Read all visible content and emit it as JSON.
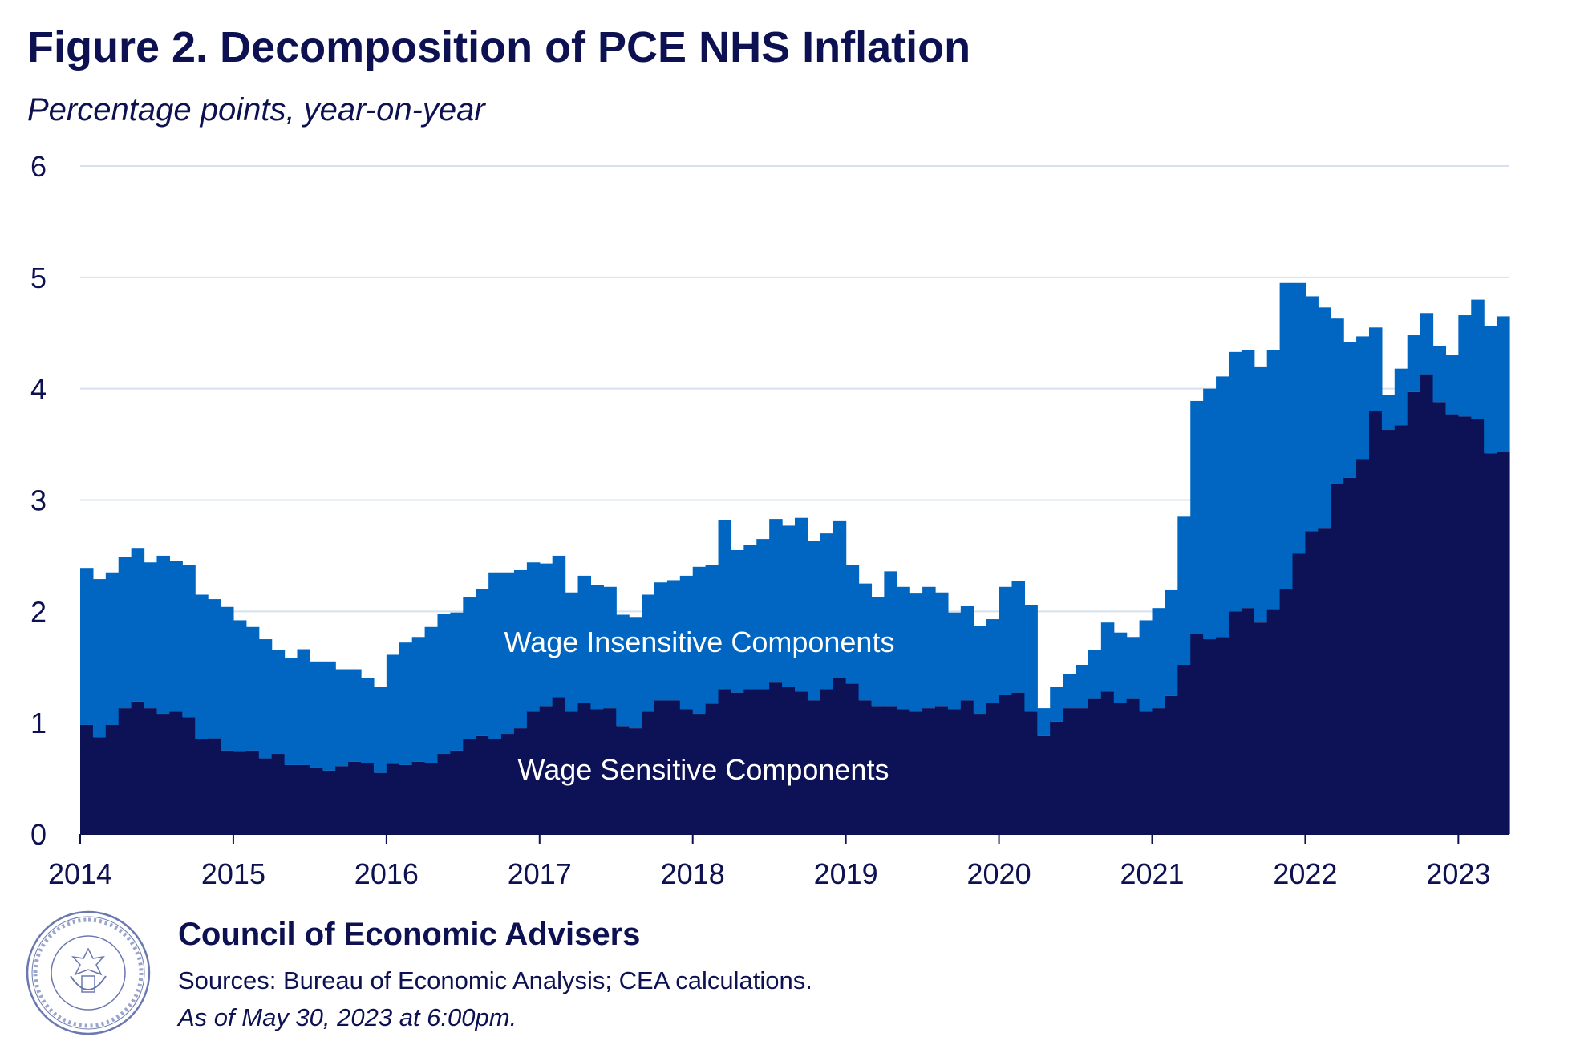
{
  "title": "Figure 2. Decomposition of PCE NHS Inflation",
  "subtitle": "Percentage points, year-on-year",
  "footer": {
    "organization": "Council of Economic Advisers",
    "sources": "Sources: Bureau of Economic Analysis; CEA calculations.",
    "as_of": "As of May 30, 2023 at 6:00pm.",
    "seal_text": "EXECUTIVE OFFICE OF THE PRESIDENT OF THE UNITED STATES · COUNCIL OF ECONOMIC ADVISERS"
  },
  "colors": {
    "wage_sensitive": "#0d1155",
    "wage_insensitive": "#0066c2",
    "grid": "#d6e0ee",
    "text": "#0d1152"
  },
  "chart_data": {
    "type": "area",
    "stacked": true,
    "step": true,
    "title": "Figure 2. Decomposition of PCE NHS Inflation",
    "ylabel": "Percentage points, year-on-year",
    "ylim": [
      0,
      6
    ],
    "yticks": [
      0,
      1,
      2,
      3,
      4,
      5,
      6
    ],
    "xticks": [
      "2014",
      "2015",
      "2016",
      "2017",
      "2018",
      "2019",
      "2020",
      "2021",
      "2022",
      "2023"
    ],
    "x_start": "2014-01",
    "x_end": "2023-04",
    "grid": true,
    "labels": {
      "wage_insensitive": "Wage Insensitive Components",
      "wage_sensitive": "Wage Sensitive Components"
    },
    "series": [
      {
        "name": "Wage Sensitive Components",
        "values": [
          0.98,
          0.87,
          0.98,
          1.13,
          1.19,
          1.13,
          1.08,
          1.1,
          1.05,
          0.85,
          0.86,
          0.75,
          0.74,
          0.75,
          0.68,
          0.72,
          0.62,
          0.62,
          0.6,
          0.57,
          0.61,
          0.65,
          0.64,
          0.55,
          0.63,
          0.62,
          0.65,
          0.64,
          0.72,
          0.75,
          0.85,
          0.88,
          0.85,
          0.9,
          0.95,
          1.1,
          1.15,
          1.23,
          1.1,
          1.18,
          1.12,
          1.13,
          0.97,
          0.95,
          1.1,
          1.2,
          1.2,
          1.12,
          1.08,
          1.17,
          1.3,
          1.27,
          1.3,
          1.3,
          1.36,
          1.32,
          1.28,
          1.2,
          1.3,
          1.4,
          1.35,
          1.2,
          1.15,
          1.15,
          1.12,
          1.1,
          1.13,
          1.15,
          1.12,
          1.2,
          1.08,
          1.18,
          1.25,
          1.27,
          1.1,
          0.88,
          1.01,
          1.13,
          1.13,
          1.22,
          1.28,
          1.18,
          1.22,
          1.1,
          1.13,
          1.24,
          1.52,
          1.8,
          1.75,
          1.77,
          2.0,
          2.03,
          1.9,
          2.02,
          2.2,
          2.52,
          2.72,
          2.75,
          3.15,
          3.2,
          3.37,
          3.8,
          3.63,
          3.67,
          3.97,
          4.13,
          3.88,
          3.77,
          3.75,
          3.73,
          3.42,
          3.43
        ]
      },
      {
        "name": "Wage Insensitive Components",
        "values": [
          1.41,
          1.42,
          1.37,
          1.36,
          1.38,
          1.31,
          1.42,
          1.35,
          1.37,
          1.3,
          1.25,
          1.29,
          1.18,
          1.11,
          1.07,
          0.93,
          0.96,
          1.04,
          0.95,
          0.98,
          0.87,
          0.83,
          0.76,
          0.77,
          0.98,
          1.1,
          1.12,
          1.22,
          1.26,
          1.24,
          1.28,
          1.32,
          1.5,
          1.45,
          1.42,
          1.34,
          1.28,
          1.27,
          1.07,
          1.14,
          1.12,
          1.09,
          1.0,
          1.0,
          1.05,
          1.06,
          1.08,
          1.2,
          1.32,
          1.25,
          1.52,
          1.28,
          1.3,
          1.35,
          1.47,
          1.45,
          1.56,
          1.43,
          1.4,
          1.41,
          1.07,
          1.05,
          0.98,
          1.21,
          1.1,
          1.06,
          1.09,
          1.02,
          0.87,
          0.85,
          0.79,
          0.75,
          0.97,
          1.0,
          0.96,
          0.25,
          0.31,
          0.31,
          0.39,
          0.43,
          0.62,
          0.63,
          0.55,
          0.82,
          0.9,
          0.95,
          1.33,
          2.09,
          2.25,
          2.34,
          2.33,
          2.32,
          2.3,
          2.33,
          2.75,
          2.43,
          2.11,
          1.98,
          1.48,
          1.22,
          1.1,
          0.75,
          0.31,
          0.51,
          0.51,
          0.55,
          0.5,
          0.53,
          0.91,
          1.07,
          1.14,
          1.22
        ]
      }
    ]
  }
}
